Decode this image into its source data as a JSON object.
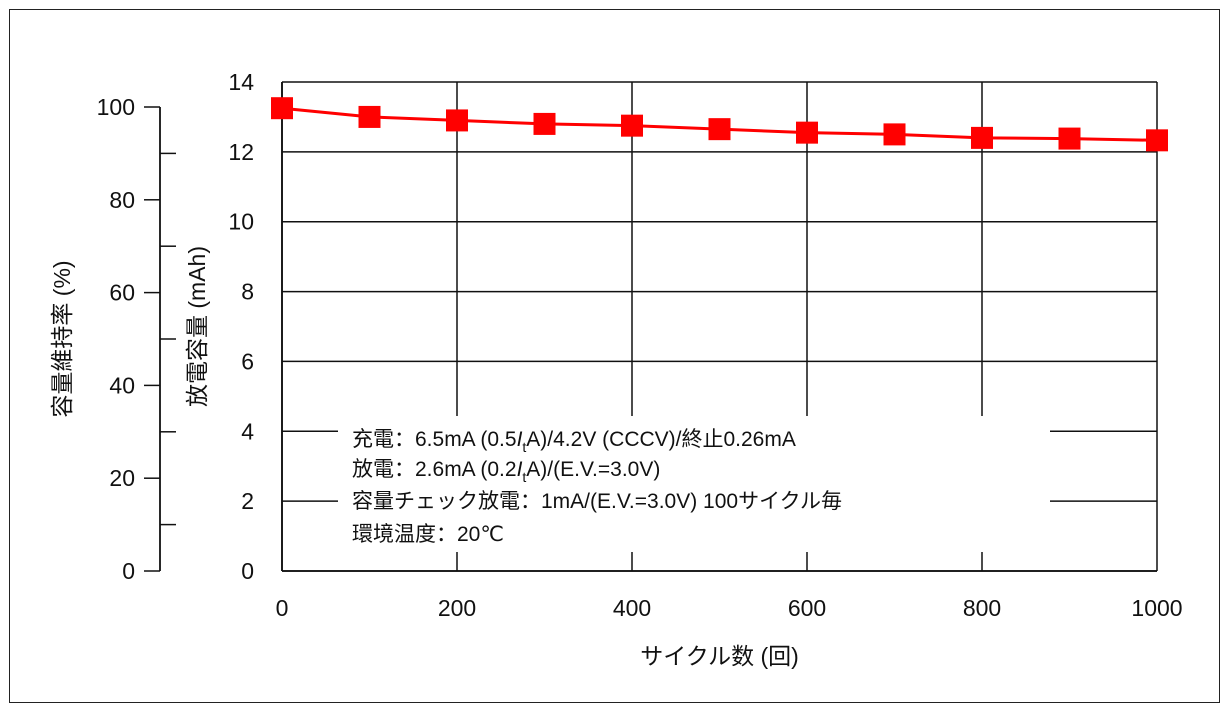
{
  "chart_data": {
    "type": "line",
    "title": "",
    "xlabel": "サイクル数 (回)",
    "ylabel_left": "容量維持率 (%)",
    "ylabel_right": "放電容量 (mAh)",
    "xlim": [
      0,
      1000
    ],
    "ylim_capacity": [
      0,
      14
    ],
    "ylim_retention": [
      0,
      100
    ],
    "x_ticks": [
      0,
      200,
      400,
      600,
      800,
      1000
    ],
    "y_ticks_capacity": [
      0,
      2,
      4,
      6,
      8,
      10,
      12,
      14
    ],
    "y_ticks_retention": [
      0,
      20,
      40,
      60,
      80,
      100
    ],
    "grid": true,
    "series": [
      {
        "color": "#ff0000",
        "marker": "square",
        "x": [
          0,
          100,
          200,
          300,
          400,
          500,
          600,
          700,
          800,
          900,
          1000
        ],
        "values": [
          13.25,
          13.0,
          12.9,
          12.8,
          12.75,
          12.65,
          12.55,
          12.5,
          12.4,
          12.38,
          12.33
        ]
      }
    ],
    "annotation": {
      "line1_pre": "充電：6.5mA (0.5",
      "line1_it": "I",
      "line1_sub": "t",
      "line1_post": "A)/4.2V (CCCV)/終止0.26mA",
      "line2_pre": "放電：2.6mA (0.2",
      "line2_it": "I",
      "line2_sub": "t",
      "line2_post": "A)/(E.V.=3.0V)",
      "line3": "容量チェック放電：1mA/(E.V.=3.0V) 100サイクル毎",
      "line4": "環境温度：20℃"
    }
  }
}
